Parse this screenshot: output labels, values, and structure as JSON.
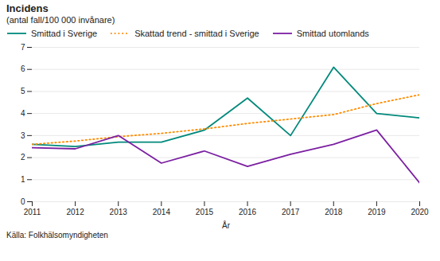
{
  "chart_data": {
    "type": "line",
    "title": "Incidens",
    "subtitle": "(antal fall/100 000 invånare)",
    "x_label": "År",
    "source": "Källa: Folkhälsomyndigheten",
    "x": [
      2011,
      2012,
      2013,
      2014,
      2015,
      2016,
      2017,
      2018,
      2019,
      2020
    ],
    "series": [
      {
        "name": "Smittad i Sverige",
        "color": "#00897B",
        "line_style": "solid",
        "values": [
          2.6,
          2.5,
          2.7,
          2.7,
          3.25,
          4.7,
          3.0,
          6.1,
          4.0,
          3.8
        ]
      },
      {
        "name": "Skattad trend - smittad i Sverige",
        "color": "#FF8C00",
        "line_style": "dotted",
        "values": [
          2.6,
          2.75,
          2.95,
          3.1,
          3.3,
          3.55,
          3.75,
          3.95,
          4.45,
          4.85
        ]
      },
      {
        "name": "Smittad utomlands",
        "color": "#7B1FA2",
        "line_style": "solid",
        "values": [
          2.45,
          2.4,
          3.0,
          1.75,
          2.3,
          1.6,
          2.15,
          2.6,
          3.25,
          0.85
        ]
      }
    ],
    "xlim": [
      2011,
      2020
    ],
    "xticks": [
      2011,
      2012,
      2013,
      2014,
      2015,
      2016,
      2017,
      2018,
      2019,
      2020
    ],
    "ylim": [
      0,
      7
    ],
    "yticks": [
      0,
      1,
      2,
      3,
      4,
      5,
      6,
      7
    ],
    "grid": true,
    "legend": "top"
  }
}
